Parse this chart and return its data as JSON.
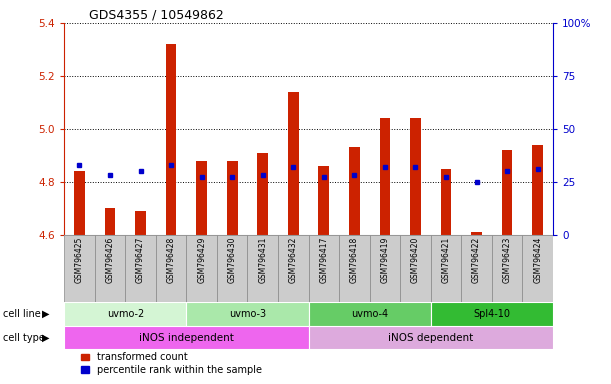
{
  "title": "GDS4355 / 10549862",
  "samples": [
    "GSM796425",
    "GSM796426",
    "GSM796427",
    "GSM796428",
    "GSM796429",
    "GSM796430",
    "GSM796431",
    "GSM796432",
    "GSM796417",
    "GSM796418",
    "GSM796419",
    "GSM796420",
    "GSM796421",
    "GSM796422",
    "GSM796423",
    "GSM796424"
  ],
  "transformed_count": [
    4.84,
    4.7,
    4.69,
    5.32,
    4.88,
    4.88,
    4.91,
    5.14,
    4.86,
    4.93,
    5.04,
    5.04,
    4.85,
    4.61,
    4.92,
    4.94
  ],
  "percentile_rank": [
    33,
    28,
    30,
    33,
    27,
    27,
    28,
    32,
    27,
    28,
    32,
    32,
    27,
    25,
    30,
    31
  ],
  "ylim_left": [
    4.6,
    5.4
  ],
  "ylim_right": [
    0,
    100
  ],
  "yticks_left": [
    4.6,
    4.8,
    5.0,
    5.2,
    5.4
  ],
  "yticks_right": [
    0,
    25,
    50,
    75,
    100
  ],
  "bar_color": "#cc2200",
  "dot_color": "#0000cc",
  "bar_bottom": 4.6,
  "cell_lines": [
    {
      "label": "uvmo-2",
      "start": 0,
      "end": 4,
      "color": "#d4f5d4"
    },
    {
      "label": "uvmo-3",
      "start": 4,
      "end": 8,
      "color": "#aae8aa"
    },
    {
      "label": "uvmo-4",
      "start": 8,
      "end": 12,
      "color": "#66cc66"
    },
    {
      "label": "Spl4-10",
      "start": 12,
      "end": 16,
      "color": "#33bb33"
    }
  ],
  "cell_types": [
    {
      "label": "iNOS independent",
      "start": 0,
      "end": 8,
      "color": "#ee66ee"
    },
    {
      "label": "iNOS dependent",
      "start": 8,
      "end": 16,
      "color": "#ddaadd"
    }
  ],
  "legend_items": [
    {
      "label": "transformed count",
      "color": "#cc2200"
    },
    {
      "label": "percentile rank within the sample",
      "color": "#0000cc"
    }
  ],
  "sample_box_color": "#cccccc",
  "sample_box_edge": "#888888",
  "bg_color": "#ffffff",
  "tick_color_left": "#cc2200",
  "tick_color_right": "#0000cc"
}
